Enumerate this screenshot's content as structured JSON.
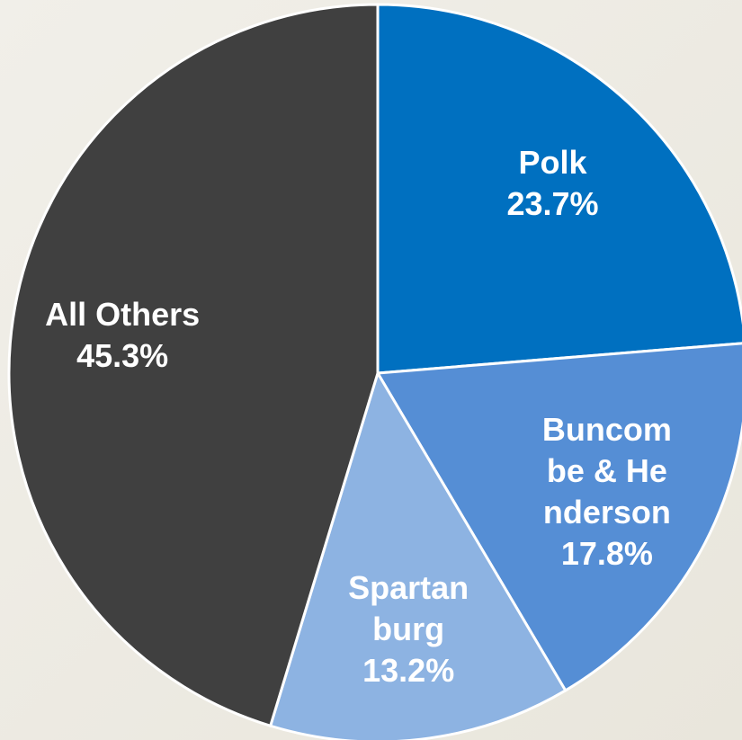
{
  "chart_data": {
    "type": "pie",
    "categories": [
      "Polk",
      "Buncombe & Henderson",
      "Spartanburg",
      "All Others"
    ],
    "values": [
      23.7,
      17.8,
      13.2,
      45.3
    ],
    "value_labels": [
      "23.7%",
      "17.8%",
      "13.2%",
      "45.3%"
    ],
    "colors": [
      "#0070c0",
      "#558ed5",
      "#8db3e2",
      "#404040"
    ]
  }
}
